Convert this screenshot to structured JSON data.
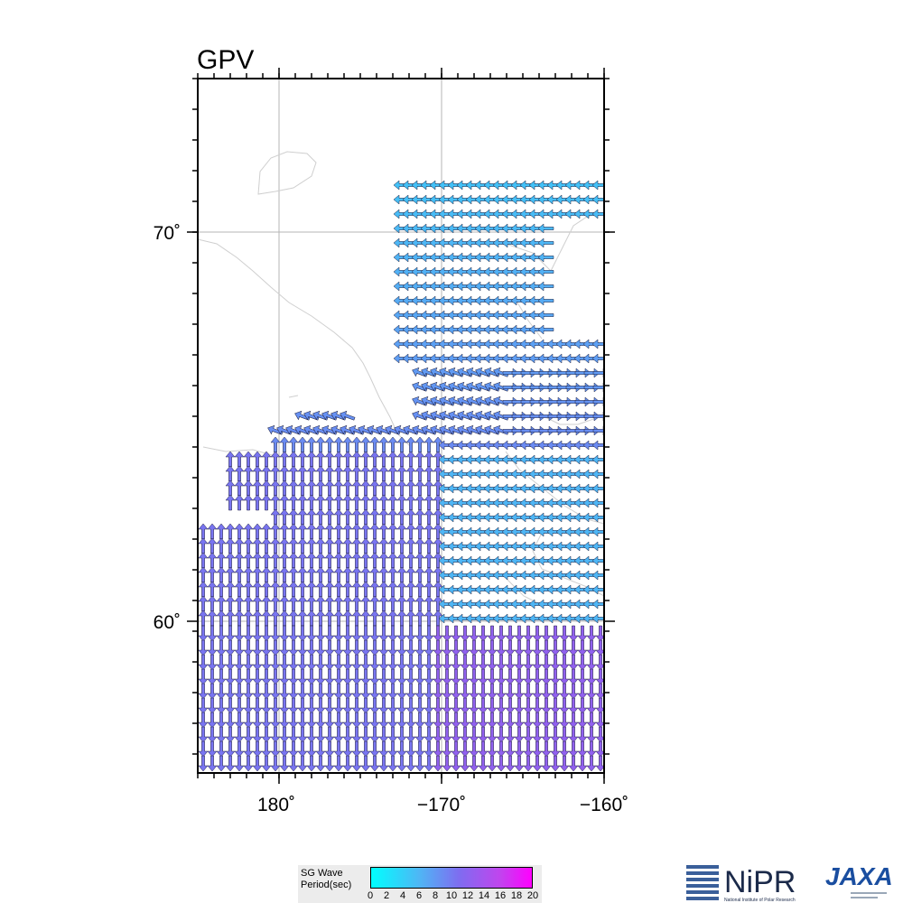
{
  "map": {
    "title": "GPV",
    "lon_ticks": [
      "180˚",
      "−170˚",
      "−160˚"
    ],
    "lat_ticks": [
      "70˚",
      "60˚"
    ]
  },
  "legend": {
    "label_line1": "SG Wave",
    "label_line2": "Period(sec)",
    "ticks": [
      "0",
      "2",
      "4",
      "6",
      "8",
      "10",
      "12",
      "14",
      "16",
      "18",
      "20"
    ],
    "colors": {
      "min": "#00ffff",
      "mid": "#7f6cf0",
      "max": "#ff00ff"
    }
  },
  "logos": {
    "nipr_text": "NiPR",
    "nipr_subtitle": "National Institute of Polar Research",
    "jaxa_text": "JAXA"
  }
}
